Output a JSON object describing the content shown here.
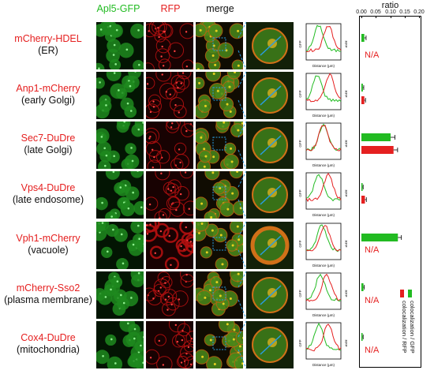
{
  "headers": {
    "gfp": "Apl5-GFP",
    "rfp": "RFP",
    "merge": "merge"
  },
  "bar_axis": {
    "title": "ratio",
    "ticks": [
      "0.00",
      "0.05",
      "0.10",
      "0.15",
      "0.20"
    ]
  },
  "plot_labels": {
    "x": "Distance (μm)",
    "y_left": "GFP",
    "y_right": "RFP"
  },
  "na_text": "N/A",
  "legend": {
    "gfp": "colocalization / GFP",
    "rfp": "colocalization / RFP"
  },
  "colors": {
    "gfp": "#22bb22",
    "rfp": "#e52020",
    "dashed": "#2a9be0"
  },
  "rows": [
    {
      "name": "mCherry-HDEL",
      "org": "(ER)"
    },
    {
      "name": "Anp1-mCherry",
      "org": "(early Golgi)"
    },
    {
      "name": "Sec7-DuDre",
      "org": "(late Golgi)"
    },
    {
      "name": "Vps4-DuDre",
      "org": "(late endosome)"
    },
    {
      "name": "Vph1-mCherry",
      "org": "(vacuole)"
    },
    {
      "name": "mCherry-Sso2",
      "org": "(plasma membrane)"
    },
    {
      "name": "Cox4-DuDre",
      "org": "(mitochondria)"
    }
  ],
  "chart_data": {
    "type": "bar",
    "title": "ratio",
    "orientation": "horizontal",
    "xlim": [
      0,
      0.2
    ],
    "categories": [
      "mCherry-HDEL",
      "Anp1-mCherry",
      "Sec7-DuDre",
      "Vps4-DuDre",
      "Vph1-mCherry",
      "mCherry-Sso2",
      "Cox4-DuDre"
    ],
    "series": [
      {
        "name": "colocalization / GFP",
        "color": "#22bb22",
        "values": [
          0.01,
          0.005,
          0.1,
          0.004,
          0.125,
          0.007,
          0.004
        ],
        "errors": [
          0.006,
          0.003,
          0.015,
          0.002,
          0.012,
          0.003,
          0.002
        ]
      },
      {
        "name": "colocalization / RFP",
        "color": "#e52020",
        "values": [
          null,
          0.01,
          0.11,
          0.012,
          null,
          null,
          null
        ],
        "errors": [
          0,
          0.004,
          0.014,
          0.005,
          0,
          0,
          0
        ]
      }
    ]
  }
}
